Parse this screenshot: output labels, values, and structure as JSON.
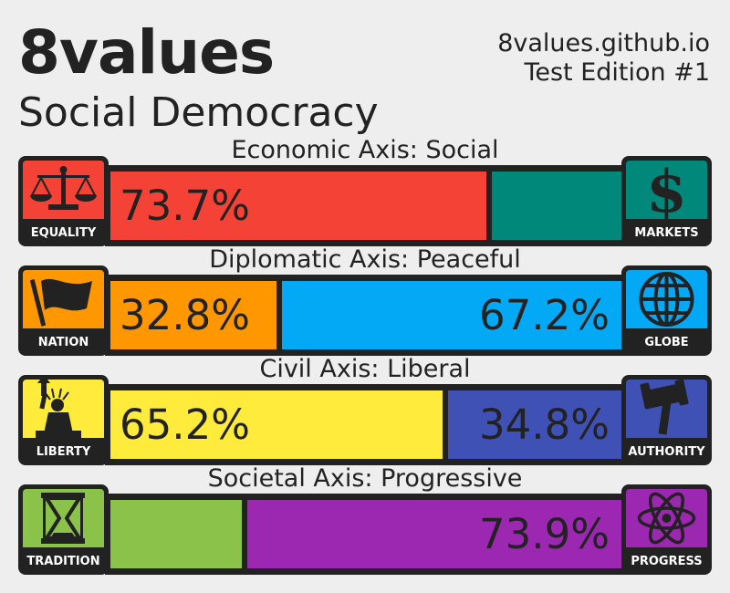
{
  "header": {
    "app_title": "8values",
    "ideology": "Social Democracy",
    "site": "8values.github.io",
    "edition": "Test Edition #1"
  },
  "axes": [
    {
      "title": "Economic Axis: Social",
      "left": {
        "label": "EQUALITY",
        "icon": "scales-icon",
        "color": "#f44336",
        "percent": 73.7,
        "text": "73.7%"
      },
      "right": {
        "label": "MARKETS",
        "icon": "dollar-icon",
        "color": "#00897b",
        "percent": 26.3,
        "text": ""
      }
    },
    {
      "title": "Diplomatic Axis: Peaceful",
      "left": {
        "label": "NATION",
        "icon": "flag-icon",
        "color": "#ff9800",
        "percent": 32.8,
        "text": "32.8%"
      },
      "right": {
        "label": "GLOBE",
        "icon": "globe-icon",
        "color": "#03a9f4",
        "percent": 67.2,
        "text": "67.2%"
      }
    },
    {
      "title": "Civil Axis: Liberal",
      "left": {
        "label": "LIBERTY",
        "icon": "statue-of-liberty-icon",
        "color": "#ffeb3b",
        "percent": 65.2,
        "text": "65.2%"
      },
      "right": {
        "label": "AUTHORITY",
        "icon": "gavel-icon",
        "color": "#3f51b5",
        "percent": 34.8,
        "text": "34.8%"
      }
    },
    {
      "title": "Societal Axis: Progressive",
      "left": {
        "label": "TRADITION",
        "icon": "hourglass-icon",
        "color": "#8bc34a",
        "percent": 26.1,
        "text": ""
      },
      "right": {
        "label": "PROGRESS",
        "icon": "atom-icon",
        "color": "#9c27b0",
        "percent": 73.9,
        "text": "73.9%"
      }
    }
  ]
}
